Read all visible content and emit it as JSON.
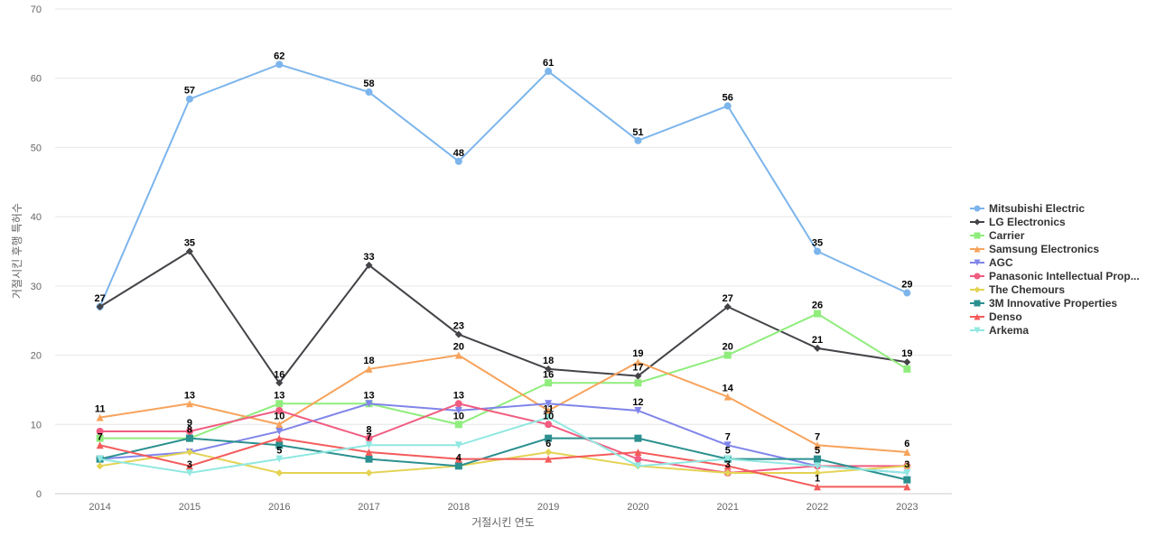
{
  "chart_data": {
    "type": "line",
    "title": "",
    "xlabel": "거절시킨 연도",
    "ylabel": "거절시킨 후행 특허수",
    "x": [
      "2014",
      "2015",
      "2016",
      "2017",
      "2018",
      "2019",
      "2020",
      "2021",
      "2022",
      "2023"
    ],
    "ylim": [
      0,
      70
    ],
    "yticks": [
      0,
      10,
      20,
      30,
      40,
      50,
      60,
      70
    ],
    "grid": true,
    "legend_position": "right",
    "series": [
      {
        "name": "Mitsubishi Electric",
        "color": "#7cb5ec",
        "marker": "circle",
        "values": [
          27,
          57,
          62,
          58,
          48,
          61,
          51,
          56,
          35,
          29
        ]
      },
      {
        "name": "LG Electronics",
        "color": "#434348",
        "marker": "diamond",
        "values": [
          27,
          35,
          16,
          33,
          23,
          18,
          17,
          27,
          21,
          19
        ]
      },
      {
        "name": "Carrier",
        "color": "#90ed7d",
        "marker": "square",
        "values": [
          8,
          8,
          13,
          13,
          10,
          16,
          16,
          20,
          26,
          18
        ]
      },
      {
        "name": "Samsung Electronics",
        "color": "#f7a35c",
        "marker": "triangle",
        "values": [
          11,
          13,
          10,
          18,
          20,
          12,
          19,
          14,
          7,
          6
        ]
      },
      {
        "name": "AGC",
        "color": "#8085e9",
        "marker": "triangle-down",
        "values": [
          5,
          6,
          9,
          13,
          12,
          13,
          12,
          7,
          4,
          3
        ]
      },
      {
        "name": "Panasonic Intellectual Prop...",
        "color": "#f15c80",
        "marker": "circle",
        "values": [
          9,
          9,
          12,
          8,
          13,
          10,
          5,
          3,
          4,
          4
        ]
      },
      {
        "name": "The Chemours",
        "color": "#e4d354",
        "marker": "diamond",
        "values": [
          4,
          6,
          3,
          3,
          4,
          6,
          4,
          3,
          3,
          4
        ]
      },
      {
        "name": "3M Innovative Properties",
        "color": "#2b908f",
        "marker": "square",
        "values": [
          5,
          8,
          7,
          5,
          4,
          8,
          8,
          5,
          5,
          2
        ]
      },
      {
        "name": "Denso",
        "color": "#f45b5b",
        "marker": "triangle",
        "values": [
          7,
          4,
          8,
          6,
          5,
          5,
          6,
          4,
          1,
          1
        ]
      },
      {
        "name": "Arkema",
        "color": "#91e8e1",
        "marker": "triangle-down",
        "values": [
          5,
          3,
          5,
          7,
          7,
          11,
          4,
          5,
          4,
          3
        ]
      }
    ],
    "data_labels": [
      {
        "series": 0,
        "points": [
          0,
          1,
          2,
          3,
          4,
          5,
          6,
          7,
          8,
          9
        ]
      },
      {
        "series": 1,
        "points": [
          1,
          2,
          3,
          4,
          5,
          6,
          7,
          8,
          9
        ]
      },
      {
        "series": 2,
        "points": [
          2,
          3,
          4,
          5,
          7,
          8
        ]
      },
      {
        "series": 3,
        "points": [
          0,
          1,
          2,
          3,
          4,
          6,
          7,
          8,
          9
        ]
      },
      {
        "series": 4,
        "points": [
          6,
          7
        ]
      },
      {
        "series": 5,
        "points": [
          1,
          3,
          4,
          5
        ]
      },
      {
        "series": 6,
        "points": [
          5,
          7
        ]
      },
      {
        "series": 7,
        "points": [
          1,
          4,
          8
        ]
      },
      {
        "series": 8,
        "points": [
          0,
          8
        ]
      },
      {
        "series": 9,
        "points": [
          1,
          2,
          3,
          5,
          7,
          9
        ]
      }
    ]
  }
}
